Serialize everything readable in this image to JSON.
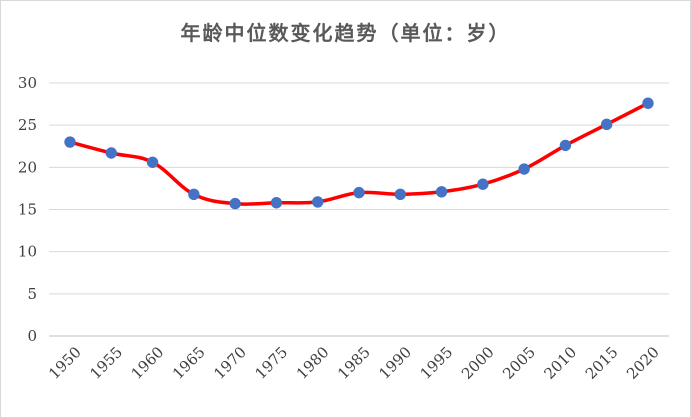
{
  "chart_data": {
    "type": "line",
    "title": "年龄中位数变化趋势（单位：岁）",
    "xlabel": "",
    "ylabel": "",
    "categories": [
      "1950",
      "1955",
      "1960",
      "1965",
      "1970",
      "1975",
      "1980",
      "1985",
      "1990",
      "1995",
      "2000",
      "2005",
      "2010",
      "2015",
      "2020"
    ],
    "yticks": [
      "0",
      "5",
      "10",
      "15",
      "20",
      "25",
      "30"
    ],
    "ylim": [
      0,
      30
    ],
    "grid": true,
    "legend": "none",
    "series": [
      {
        "values": [
          23.0,
          21.7,
          20.6,
          16.8,
          15.7,
          15.8,
          15.9,
          17.0,
          16.8,
          17.1,
          18.0,
          19.8,
          22.6,
          25.1,
          27.6
        ]
      }
    ],
    "line_color": "#ff0000",
    "marker_color": "#4472c4",
    "smooth": true
  }
}
